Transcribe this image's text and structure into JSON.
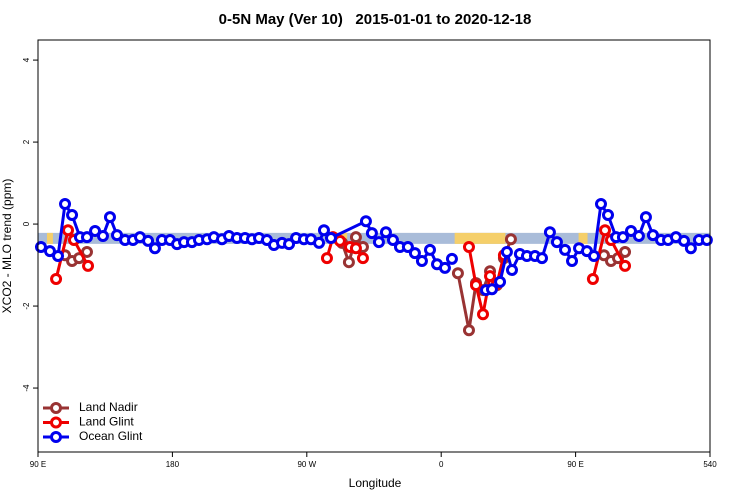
{
  "chart_data": {
    "type": "line",
    "title": "0-5N May (Ver 10)   2015-01-01 to 2020-12-18",
    "xlabel": "Longitude",
    "ylabel": "XCO2 - MLO trend (ppm)",
    "xlim": [
      90,
      540
    ],
    "xticks": [
      {
        "value": 90,
        "label": "90 E"
      },
      180,
      {
        "value": 270,
        "label": "90 W"
      },
      {
        "value": 360,
        "label": "0"
      },
      {
        "value": 450,
        "label": "90 E"
      },
      540
    ],
    "ylim": [
      -5.56,
      4.49
    ],
    "yticks": [
      -4,
      -2,
      0,
      2,
      4
    ],
    "legend": "bottom-left",
    "band": {
      "y": -0.35,
      "segments": [
        {
          "x": [
            90,
            540
          ],
          "color": "#a9bcd9"
        },
        {
          "x": [
            96,
            100
          ],
          "color": "#f5cf6a"
        },
        {
          "x": [
            285,
            297
          ],
          "color": "#f5cf6a"
        },
        {
          "x": [
            369,
            403
          ],
          "color": "#f5cf6a"
        },
        {
          "x": [
            452,
            458
          ],
          "color": "#f5cf6a"
        }
      ]
    },
    "series": [
      {
        "name": "Land Nadir",
        "color": "#993333",
        "x": [
          108.1,
          112.8,
          117.5,
          122.8,
          null,
          293.6,
          298.2,
          302.9,
          307.6,
          null,
          371.2,
          378.6,
          383.3,
          388.0,
          392.7,
          397.3,
          402.0,
          406.7,
          null,
          469.0,
          473.7,
          478.4,
          483.1
        ],
        "values": [
          -0.76,
          -0.9,
          -0.83,
          -0.68,
          null,
          -0.46,
          -0.93,
          -0.32,
          -0.56,
          null,
          -1.2,
          -2.59,
          -1.44,
          -1.61,
          -1.15,
          -1.49,
          -0.83,
          -0.37,
          null,
          -0.76,
          -0.9,
          -0.83,
          -0.68
        ]
      },
      {
        "name": "Land Glint",
        "color": "#ee0000",
        "x": [
          102.1,
          110.1,
          114.1,
          123.5,
          null,
          283.5,
          287.5,
          292.2,
          298.9,
          302.9,
          307.6,
          null,
          378.6,
          383.3,
          388.0,
          392.7,
          397.3,
          402.0,
          null,
          461.6,
          469.7,
          473.7,
          483.1
        ],
        "values": [
          -1.34,
          -0.15,
          -0.39,
          -1.02,
          null,
          -0.83,
          -0.32,
          -0.41,
          -0.56,
          -0.59,
          -0.83,
          null,
          -0.56,
          -1.49,
          -2.2,
          -1.27,
          -1.46,
          -0.76,
          null,
          -1.34,
          -0.15,
          -0.39,
          -1.02
        ]
      },
      {
        "name": "Ocean Glint",
        "color": "#0000ee",
        "x": [
          92.0,
          98.0,
          103.4,
          108.1,
          112.8,
          118.1,
          122.8,
          128.2,
          133.5,
          138.2,
          142.9,
          148.3,
          153.6,
          158.3,
          163.7,
          168.3,
          173.0,
          178.4,
          183.1,
          187.8,
          193.1,
          197.8,
          203.2,
          207.8,
          213.2,
          217.9,
          223.2,
          228.6,
          233.3,
          238.0,
          243.3,
          248.0,
          253.4,
          258.1,
          262.8,
          268.1,
          272.8,
          278.2,
          281.5,
          286.2,
          309.6,
          313.6,
          318.3,
          323.0,
          327.7,
          332.4,
          337.7,
          342.4,
          347.1,
          352.5,
          357.2,
          362.5,
          367.2,
          null,
          390.0,
          394.0,
          399.4,
          404.0,
          407.4,
          412.7,
          417.4,
          422.8,
          427.5,
          432.8,
          437.5,
          442.9,
          447.6,
          452.3,
          457.6,
          462.3,
          467.0,
          471.7,
          477.1,
          481.7,
          487.1,
          492.4,
          497.1,
          501.8,
          507.2,
          511.9,
          517.2,
          522.6,
          527.2,
          532.6,
          537.9
        ],
        "values": [
          -0.56,
          -0.66,
          -0.78,
          0.49,
          0.22,
          -0.32,
          -0.32,
          -0.17,
          -0.29,
          0.17,
          -0.27,
          -0.39,
          -0.39,
          -0.32,
          -0.41,
          -0.59,
          -0.39,
          -0.39,
          -0.49,
          -0.44,
          -0.44,
          -0.39,
          -0.37,
          -0.32,
          -0.37,
          -0.29,
          -0.34,
          -0.34,
          -0.37,
          -0.34,
          -0.39,
          -0.51,
          -0.46,
          -0.49,
          -0.34,
          -0.37,
          -0.37,
          -0.46,
          -0.15,
          -0.34,
          0.07,
          -0.22,
          -0.44,
          -0.2,
          -0.39,
          -0.56,
          -0.56,
          -0.71,
          -0.9,
          -0.63,
          -0.98,
          -1.07,
          -0.85,
          null,
          -1.61,
          -1.59,
          -1.41,
          -0.68,
          -1.12,
          -0.73,
          -0.78,
          -0.78,
          -0.83,
          -0.2,
          -0.44,
          -0.63,
          -0.9,
          -0.59,
          -0.66,
          -0.78,
          0.49,
          0.22,
          -0.32,
          -0.32,
          -0.17,
          -0.29,
          0.17,
          -0.27,
          -0.39,
          -0.39,
          -0.32,
          -0.41,
          -0.59,
          -0.39,
          -0.39
        ]
      }
    ]
  }
}
